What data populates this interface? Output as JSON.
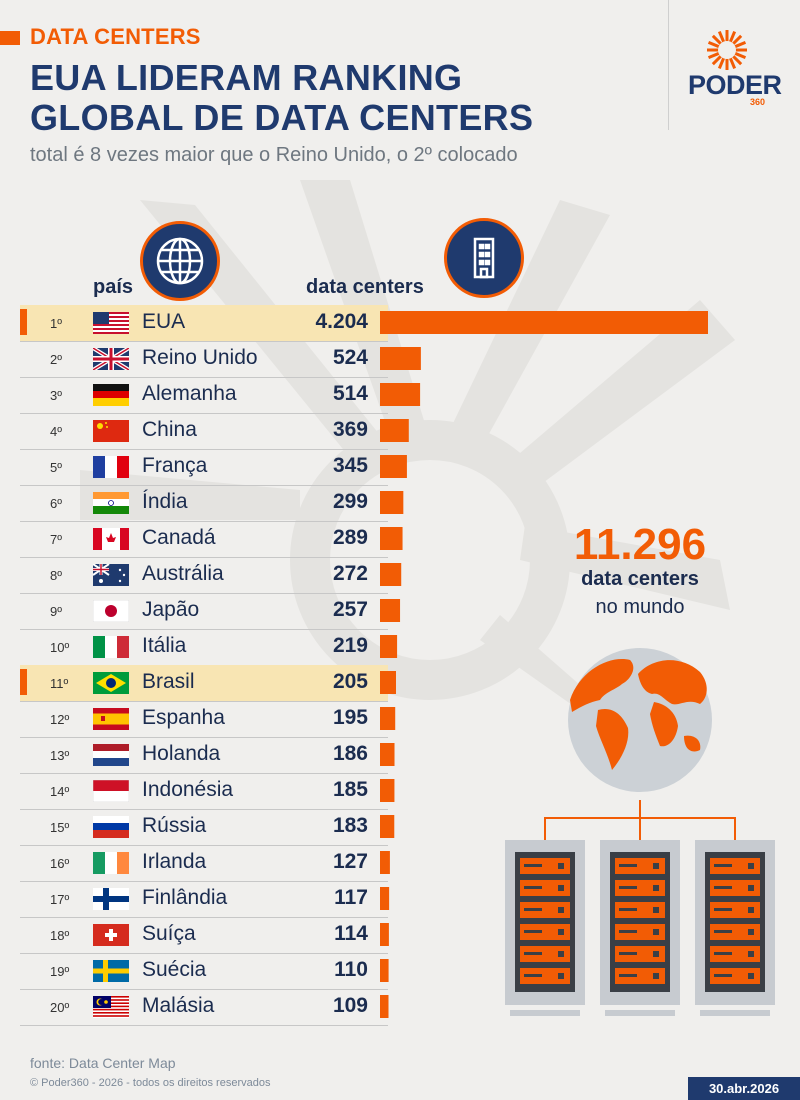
{
  "header": {
    "kicker": "DATA CENTERS",
    "title_line1": "EUA LIDERAM RANKING",
    "title_line2": "GLOBAL DE DATA CENTERS",
    "subtitle": "total é 8 vezes maior que o Reino Unido, o 2º colocado"
  },
  "logo": {
    "text": "PODER",
    "number": "360"
  },
  "icons": {
    "globe": "globe-icon",
    "building": "building-icon",
    "earth": "earth-icon",
    "servers": "server-rack-icon"
  },
  "colors": {
    "accent": "#f25c05",
    "navy": "#1f3a6e",
    "highlight": "#f8e5b3",
    "background": "#f0efed"
  },
  "columns": {
    "country": "país",
    "value": "data centers"
  },
  "chart_data": {
    "type": "bar",
    "orientation": "horizontal",
    "rows": [
      {
        "rank": "1º",
        "country": "EUA",
        "flag": "us",
        "label": "4.204",
        "value": 4204,
        "highlight": true
      },
      {
        "rank": "2º",
        "country": "Reino Unido",
        "flag": "gb",
        "label": "524",
        "value": 524
      },
      {
        "rank": "3º",
        "country": "Alemanha",
        "flag": "de",
        "label": "514",
        "value": 514
      },
      {
        "rank": "4º",
        "country": "China",
        "flag": "cn",
        "label": "369",
        "value": 369
      },
      {
        "rank": "5º",
        "country": "França",
        "flag": "fr",
        "label": "345",
        "value": 345
      },
      {
        "rank": "6º",
        "country": "Índia",
        "flag": "in",
        "label": "299",
        "value": 299
      },
      {
        "rank": "7º",
        "country": "Canadá",
        "flag": "ca",
        "label": "289",
        "value": 289
      },
      {
        "rank": "8º",
        "country": "Austrália",
        "flag": "au",
        "label": "272",
        "value": 272
      },
      {
        "rank": "9º",
        "country": "Japão",
        "flag": "jp",
        "label": "257",
        "value": 257
      },
      {
        "rank": "10º",
        "country": "Itália",
        "flag": "it",
        "label": "219",
        "value": 219
      },
      {
        "rank": "11º",
        "country": "Brasil",
        "flag": "br",
        "label": "205",
        "value": 205,
        "highlight": true
      },
      {
        "rank": "12º",
        "country": "Espanha",
        "flag": "es",
        "label": "195",
        "value": 195
      },
      {
        "rank": "13º",
        "country": "Holanda",
        "flag": "nl",
        "label": "186",
        "value": 186
      },
      {
        "rank": "14º",
        "country": "Indonésia",
        "flag": "id",
        "label": "185",
        "value": 185
      },
      {
        "rank": "15º",
        "country": "Rússia",
        "flag": "ru",
        "label": "183",
        "value": 183
      },
      {
        "rank": "16º",
        "country": "Irlanda",
        "flag": "ie",
        "label": "127",
        "value": 127
      },
      {
        "rank": "17º",
        "country": "Finlândia",
        "flag": "fi",
        "label": "117",
        "value": 117
      },
      {
        "rank": "18º",
        "country": "Suíça",
        "flag": "ch",
        "label": "114",
        "value": 114
      },
      {
        "rank": "19º",
        "country": "Suécia",
        "flag": "se",
        "label": "110",
        "value": 110
      },
      {
        "rank": "20º",
        "country": "Malásia",
        "flag": "my",
        "label": "109",
        "value": 109
      }
    ],
    "xlim": [
      0,
      4204
    ],
    "grid": false,
    "legend": "none"
  },
  "total": {
    "number": "11.296",
    "line1": "data centers",
    "line2": "no mundo"
  },
  "footer": {
    "source": "fonte: Data Center Map",
    "copyright": "© Poder360 - 2026 - todos os direitos reservados",
    "date": "30.abr.2026"
  }
}
